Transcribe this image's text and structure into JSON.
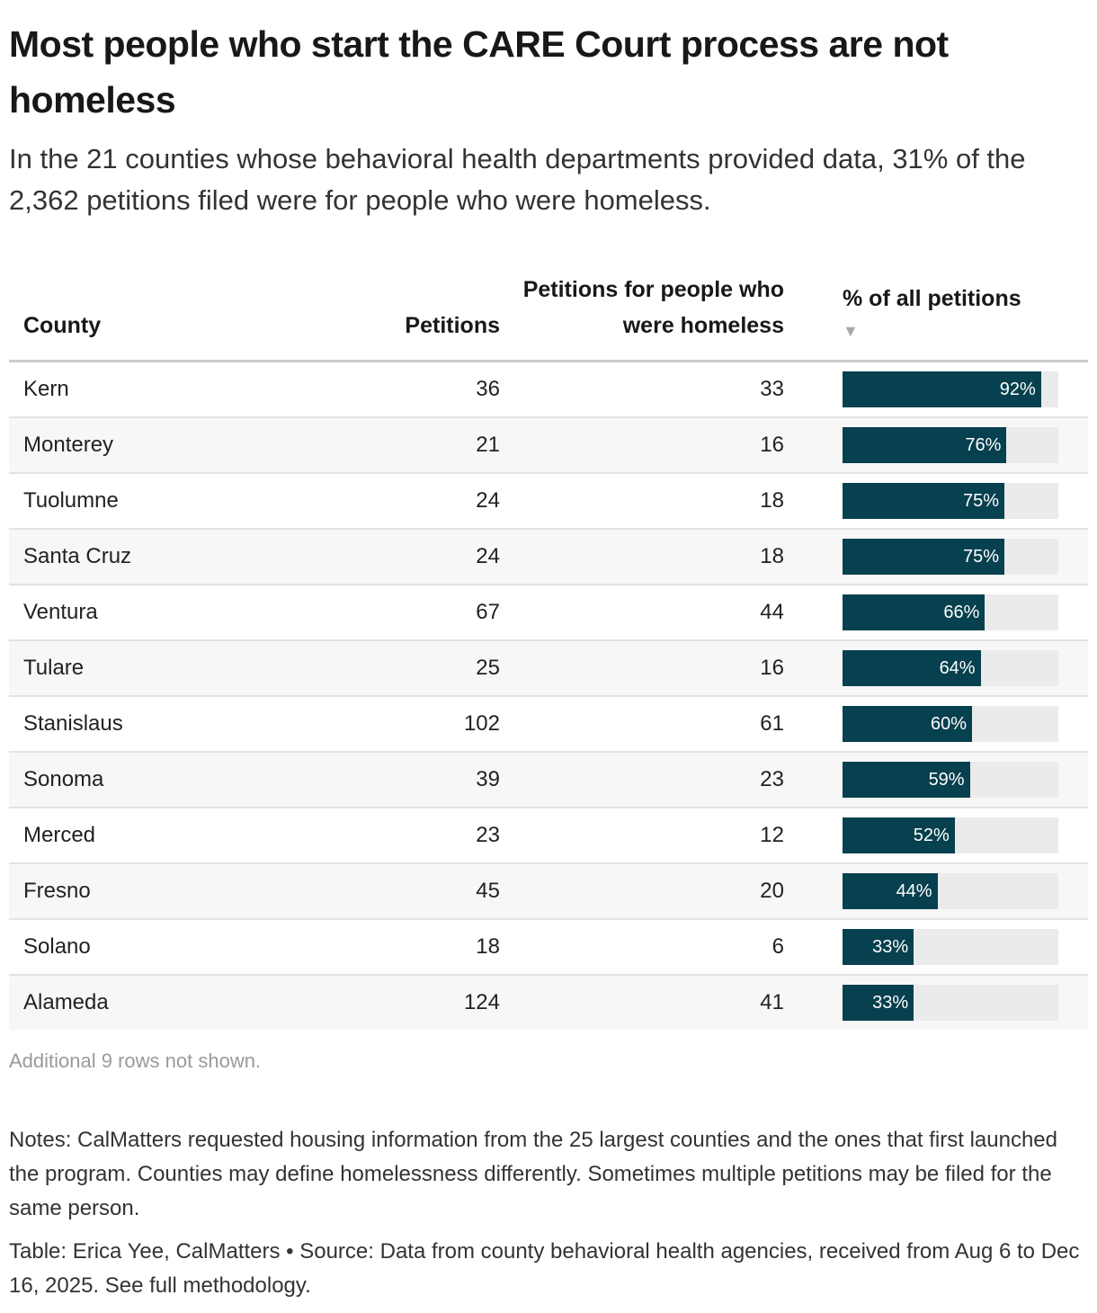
{
  "header": {
    "title": "Most people who start the CARE Court process are not homeless",
    "subtitle": "In the 21 counties whose behavioral health departments provided data, 31% of the 2,362 petitions filed were for people who were homeless."
  },
  "table": {
    "columns": {
      "county": "County",
      "petitions": "Petitions",
      "homeless": "Petitions for people who were homeless",
      "pct": "% of all petitions",
      "sort_indicator": "▼"
    },
    "rows": [
      {
        "county": "Kern",
        "petitions": "36",
        "homeless": "33",
        "pct": 92,
        "pct_label": "92%"
      },
      {
        "county": "Monterey",
        "petitions": "21",
        "homeless": "16",
        "pct": 76,
        "pct_label": "76%"
      },
      {
        "county": "Tuolumne",
        "petitions": "24",
        "homeless": "18",
        "pct": 75,
        "pct_label": "75%"
      },
      {
        "county": "Santa Cruz",
        "petitions": "24",
        "homeless": "18",
        "pct": 75,
        "pct_label": "75%"
      },
      {
        "county": "Ventura",
        "petitions": "67",
        "homeless": "44",
        "pct": 66,
        "pct_label": "66%"
      },
      {
        "county": "Tulare",
        "petitions": "25",
        "homeless": "16",
        "pct": 64,
        "pct_label": "64%"
      },
      {
        "county": "Stanislaus",
        "petitions": "102",
        "homeless": "61",
        "pct": 60,
        "pct_label": "60%"
      },
      {
        "county": "Sonoma",
        "petitions": "39",
        "homeless": "23",
        "pct": 59,
        "pct_label": "59%"
      },
      {
        "county": "Merced",
        "petitions": "23",
        "homeless": "12",
        "pct": 52,
        "pct_label": "52%"
      },
      {
        "county": "Fresno",
        "petitions": "45",
        "homeless": "20",
        "pct": 44,
        "pct_label": "44%"
      },
      {
        "county": "Solano",
        "petitions": "18",
        "homeless": "6",
        "pct": 33,
        "pct_label": "33%"
      },
      {
        "county": "Alameda",
        "petitions": "124",
        "homeless": "41",
        "pct": 33,
        "pct_label": "33%"
      }
    ],
    "more_rows": "Additional 9 rows not shown."
  },
  "footer": {
    "notes": "Notes: CalMatters requested housing information from the 25 largest counties and the ones that first launched the program. Counties may define homelessness differently. Sometimes multiple petitions may be filed for the same person.",
    "credit": "Table: Erica Yee, CalMatters • Source: Data from county behavioral health agencies, received from Aug 6 to Dec 16, 2025. See full methodology."
  },
  "colors": {
    "bar": "#07404e",
    "track": "#ebebeb"
  },
  "chart_data": {
    "type": "table",
    "title": "Most people who start the CARE Court process are not homeless",
    "subtitle": "In the 21 counties whose behavioral health departments provided data, 31% of the 2,362 petitions filed were for people who were homeless.",
    "columns": [
      "County",
      "Petitions",
      "Petitions for people who were homeless",
      "% of all petitions"
    ],
    "categories": [
      "Kern",
      "Monterey",
      "Tuolumne",
      "Santa Cruz",
      "Ventura",
      "Tulare",
      "Stanislaus",
      "Sonoma",
      "Merced",
      "Fresno",
      "Solano",
      "Alameda"
    ],
    "series": [
      {
        "name": "Petitions",
        "values": [
          36,
          21,
          24,
          24,
          67,
          25,
          102,
          39,
          23,
          45,
          18,
          124
        ]
      },
      {
        "name": "Petitions for people who were homeless",
        "values": [
          33,
          16,
          18,
          18,
          44,
          16,
          61,
          23,
          12,
          20,
          6,
          41
        ]
      },
      {
        "name": "% of all petitions",
        "values": [
          92,
          76,
          75,
          75,
          66,
          64,
          60,
          59,
          52,
          44,
          33,
          33
        ]
      }
    ],
    "bar_range": [
      0,
      100
    ],
    "sort": "% of all petitions descending"
  }
}
